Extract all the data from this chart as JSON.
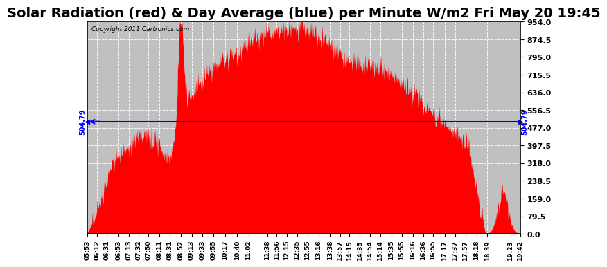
{
  "title": "Solar Radiation (red) & Day Average (blue) per Minute W/m2 Fri May 20 19:45",
  "copyright_text": "Copyright 2011 Cartronics.com",
  "y_min": 0.0,
  "y_max": 954.0,
  "y_ticks": [
    0.0,
    79.5,
    159.0,
    238.5,
    318.0,
    397.5,
    477.0,
    556.5,
    636.0,
    715.5,
    795.0,
    874.5,
    954.0
  ],
  "day_average": 504.79,
  "day_average_color": "blue",
  "fill_color": "red",
  "background_color": "white",
  "grid_color": "white",
  "title_fontsize": 14,
  "x_labels": [
    "05:53",
    "06:12",
    "06:31",
    "06:53",
    "07:13",
    "07:32",
    "07:50",
    "08:11",
    "08:31",
    "08:52",
    "09:13",
    "09:33",
    "09:55",
    "10:17",
    "10:40",
    "11:02",
    "11:38",
    "11:56",
    "12:15",
    "12:35",
    "12:55",
    "13:16",
    "13:38",
    "13:57",
    "14:15",
    "14:35",
    "14:54",
    "15:14",
    "15:35",
    "15:55",
    "16:16",
    "16:36",
    "16:55",
    "17:17",
    "17:37",
    "17:57",
    "18:18",
    "18:39",
    "19:23",
    "19:42"
  ],
  "num_points": 1000,
  "total_minutes": 829
}
